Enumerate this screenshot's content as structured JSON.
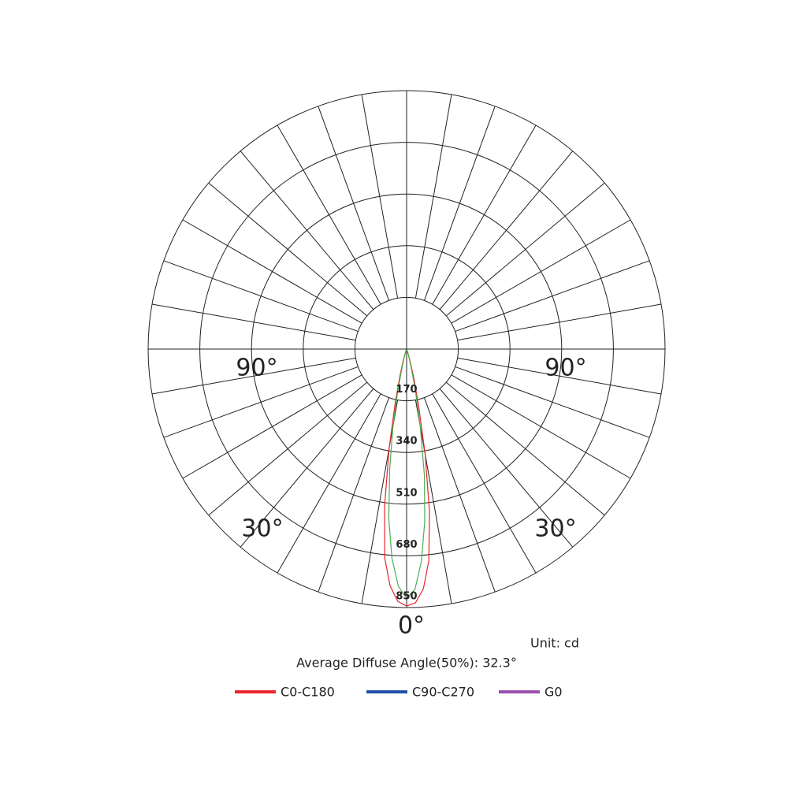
{
  "chart_data": {
    "type": "polar",
    "rlim": [
      0,
      850
    ],
    "rticks": [
      170,
      340,
      510,
      680,
      850
    ],
    "angle_grid_step": 10,
    "angle_labels": [
      {
        "value": -90,
        "label": "90°"
      },
      {
        "value": 90,
        "label": "90°"
      },
      {
        "value": -30,
        "label": "30°"
      },
      {
        "value": 30,
        "label": "30°"
      },
      {
        "value": 0,
        "label": "0°"
      }
    ],
    "unit": "Unit: cd",
    "subtitle": "Average Diffuse Angle(50%): 32.3°",
    "angles": [
      -20,
      -18,
      -16,
      -14,
      -12,
      -10,
      -8,
      -6,
      -4,
      -2,
      0,
      2,
      4,
      6,
      8,
      10,
      12,
      14,
      16,
      18,
      20
    ],
    "series": [
      {
        "name": "C0-C180",
        "color": "#e8262c",
        "values": [
          5,
          15,
          40,
          90,
          180,
          330,
          520,
          690,
          780,
          830,
          845,
          835,
          790,
          700,
          540,
          350,
          190,
          95,
          40,
          15,
          5
        ]
      },
      {
        "name": "C90-C270",
        "color": "#1f4fa8",
        "line_color": "#4caf50",
        "values": [
          3,
          10,
          25,
          60,
          140,
          260,
          400,
          560,
          690,
          780,
          820,
          790,
          700,
          570,
          420,
          260,
          140,
          60,
          25,
          10,
          3
        ]
      },
      {
        "name": "G0",
        "color": "#9b4fb0"
      }
    ]
  }
}
